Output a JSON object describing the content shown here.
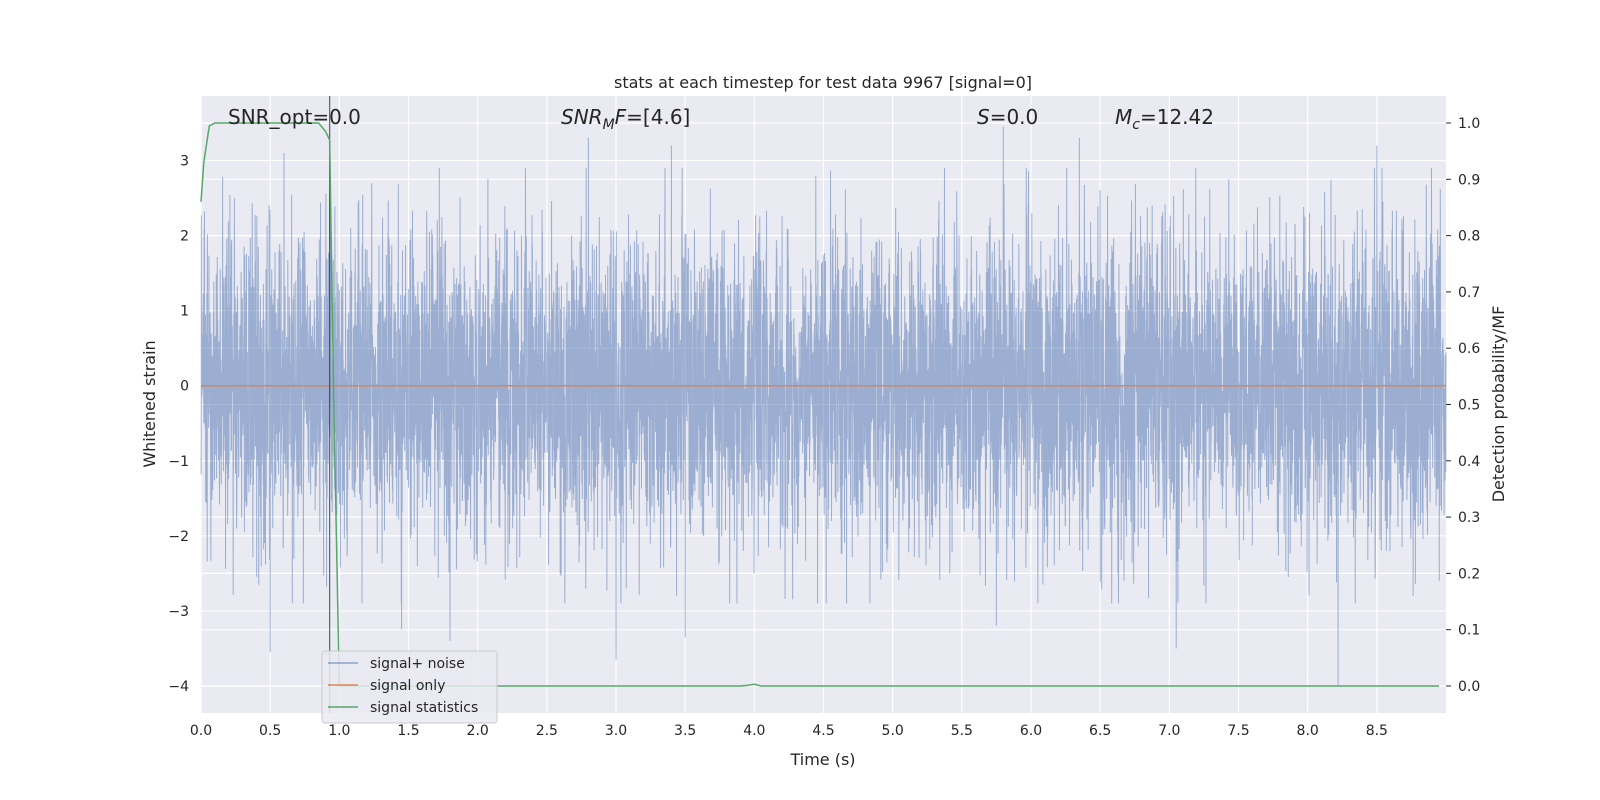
{
  "chart_data": {
    "type": "line",
    "title": "stats at each timestep for test data 9967 [signal=0]",
    "xlabel": "Time (s)",
    "ylabel_left": "Whitened strain",
    "ylabel_right": "Detection probability/MF",
    "xlim": [
      0.0,
      9.0
    ],
    "ylim_left": [
      -4.36,
      3.86
    ],
    "ylim_right": [
      -0.048,
      1.048
    ],
    "x_ticks": [
      "0.0",
      "0.5",
      "1.0",
      "1.5",
      "2.0",
      "2.5",
      "3.0",
      "3.5",
      "4.0",
      "4.5",
      "5.0",
      "5.5",
      "6.0",
      "6.5",
      "7.0",
      "7.5",
      "8.0",
      "8.5"
    ],
    "y_left_ticks": [
      "3",
      "2",
      "1",
      "0",
      "−1",
      "−2",
      "−3",
      "−4"
    ],
    "y_right_ticks": [
      "1.0",
      "0.9",
      "0.8",
      "0.7",
      "0.6",
      "0.5",
      "0.4",
      "0.3",
      "0.2",
      "0.1",
      "0.0"
    ],
    "grid": true,
    "legend_position": "lower-left",
    "annotations": [
      {
        "label": "SNR_opt",
        "text": "=0.0",
        "x": 0.2
      },
      {
        "label": "SNR",
        "sub": "M",
        "label_after": "F",
        "text": "=[4.6]",
        "x": 2.6
      },
      {
        "label": "S",
        "text": "=0.0",
        "x": 5.6
      },
      {
        "label": "M",
        "sub": "c",
        "text": "=12.42",
        "x": 6.6
      }
    ],
    "marker_line": {
      "x": 0.93
    },
    "series": [
      {
        "name": "signal+ noise",
        "color": "#4c72b0",
        "axis": "left",
        "noise_amplitude": 1.0,
        "spikes": [
          {
            "x": 0.5,
            "y": -3.55
          },
          {
            "x": 0.6,
            "y": 3.1
          },
          {
            "x": 0.93,
            "y": 3.2
          },
          {
            "x": 1.45,
            "y": -3.25
          },
          {
            "x": 1.8,
            "y": -3.4
          },
          {
            "x": 2.8,
            "y": 3.3
          },
          {
            "x": 3.0,
            "y": -3.65
          },
          {
            "x": 3.4,
            "y": 3.2
          },
          {
            "x": 3.5,
            "y": -3.35
          },
          {
            "x": 5.75,
            "y": -3.2
          },
          {
            "x": 5.8,
            "y": 3.45
          },
          {
            "x": 6.35,
            "y": 3.3
          },
          {
            "x": 7.05,
            "y": -3.5
          },
          {
            "x": 8.22,
            "y": -4.0
          },
          {
            "x": 8.5,
            "y": 3.2
          }
        ]
      },
      {
        "name": "signal only",
        "color": "#dd8452",
        "axis": "left",
        "x": [
          0.0,
          9.0
        ],
        "y": [
          0.0,
          0.0
        ]
      },
      {
        "name": "signal statistics",
        "color": "#55a868",
        "axis": "right",
        "x": [
          0.0,
          0.02,
          0.06,
          0.1,
          0.2,
          0.5,
          0.85,
          0.9,
          0.93,
          0.96,
          1.0,
          2.0,
          3.0,
          3.9,
          3.95,
          4.0,
          4.05,
          5.0,
          6.0,
          7.0,
          8.0,
          8.95
        ],
        "y": [
          0.86,
          0.93,
          0.995,
          1.0,
          1.0,
          1.0,
          1.0,
          0.985,
          0.97,
          0.5,
          0.0,
          0.0,
          0.0,
          0.0,
          0.001,
          0.003,
          0.0,
          0.0,
          0.0,
          0.0,
          0.0,
          0.0
        ]
      }
    ]
  }
}
